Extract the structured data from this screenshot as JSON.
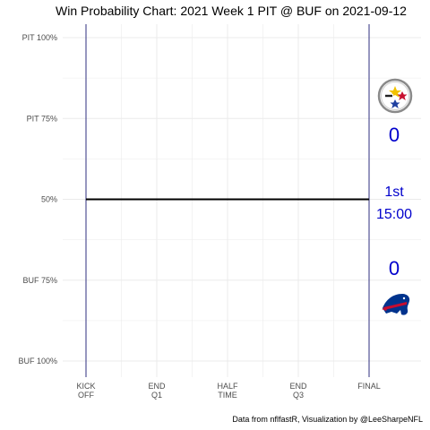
{
  "chart_data": {
    "type": "line",
    "title": "Win Probability Chart: 2021 Week 1 PIT @ BUF on 2021-09-12",
    "caption": "Data from nflfastR, Visualization by @LeeSharpeNFL",
    "y_ticks": [
      {
        "value": 1.0,
        "label": "PIT 100%"
      },
      {
        "value": 0.75,
        "label": "PIT 75%"
      },
      {
        "value": 0.5,
        "label": "50%"
      },
      {
        "value": 0.25,
        "label": "BUF 75%"
      },
      {
        "value": 0.0,
        "label": "BUF 100%"
      }
    ],
    "ylim": [
      0,
      1
    ],
    "x_ticks": [
      {
        "value": 0,
        "label": [
          "KICK",
          "OFF"
        ]
      },
      {
        "value": 900,
        "label": [
          "END",
          "Q1"
        ]
      },
      {
        "value": 1800,
        "label": [
          "HALF",
          "TIME"
        ]
      },
      {
        "value": 2700,
        "label": [
          "END",
          "Q3"
        ]
      },
      {
        "value": 3600,
        "label": [
          "FINAL"
        ]
      }
    ],
    "xlim": [
      0,
      3600
    ],
    "vertical_lines": [
      0,
      3600
    ],
    "series": [
      {
        "values": [
          {
            "x": 0,
            "y": 0.5
          },
          {
            "x": 3600,
            "y": 0.5
          }
        ]
      }
    ],
    "grid": true
  },
  "teams": {
    "away": {
      "abbr": "PIT",
      "score": "0",
      "logo": "steelers-logo"
    },
    "home": {
      "abbr": "BUF",
      "score": "0",
      "logo": "bills-logo"
    }
  },
  "game_state": {
    "quarter": "1st",
    "clock": "15:00"
  },
  "colors": {
    "score_text": "#0000cc",
    "vline": "#2f2f7f",
    "grid": "#ebebeb",
    "wp_line": "#000000"
  }
}
